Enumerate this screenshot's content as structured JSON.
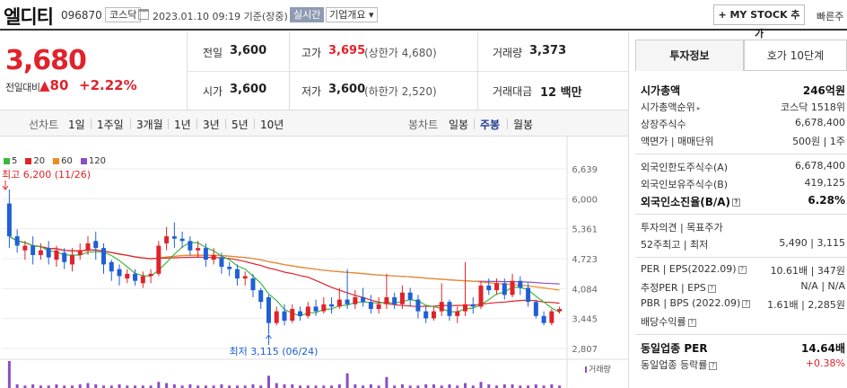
{
  "header": {
    "name": "엘디티",
    "code": "096870",
    "market": "코스닥",
    "datetime": "2023.01.10 09:19 기준(장중)",
    "realtime": "실시간",
    "overview": "기업개요 ▾",
    "mystock": "+ MY STOCK 추가",
    "quick": "빠른주"
  },
  "price": {
    "current": "3,680",
    "change_label": "전일대비",
    "change_value": "▲80",
    "change_pct": "+2.22%"
  },
  "quote": {
    "prev_label": "전일",
    "prev": "3,600",
    "high_label": "고가",
    "high": "3,695",
    "upper": "(상한가 4,680)",
    "volume_label": "거래량",
    "volume": "3,373",
    "open_label": "시가",
    "open": "3,600",
    "low_label": "저가",
    "low": "3,600",
    "lower": "(하한가 2,520)",
    "amount_label": "거래대금",
    "amount": "12 백만"
  },
  "period": {
    "line_head": "선차트",
    "line_items": [
      "1일",
      "1주일",
      "3개월",
      "1년",
      "3년",
      "5년",
      "10년"
    ],
    "candle_head": "봉차트",
    "candle_items": [
      "일봉",
      "주봉",
      "월봉"
    ],
    "active": "주봉"
  },
  "chart_data": {
    "type": "candlestick",
    "interval": "weekly",
    "legend": [
      {
        "name": "5",
        "color": "#3cb93c"
      },
      {
        "name": "20",
        "color": "#e0232b"
      },
      {
        "name": "60",
        "color": "#f08c1e"
      },
      {
        "name": "120",
        "color": "#8a4fc4"
      }
    ],
    "ylim": [
      2807,
      6639
    ],
    "yticks": [
      "6,639",
      "6,000",
      "5,361",
      "4,723",
      "4,084",
      "3,445",
      "2,807"
    ],
    "high_annotation": "최고 6,200 (11/26)",
    "low_annotation": "최저 3,115 (06/24)",
    "volume_label": "거래량",
    "candles": [
      [
        5900,
        5200,
        6200,
        4950
      ],
      [
        5200,
        5000,
        5350,
        4850
      ],
      [
        4900,
        5000,
        5100,
        4700
      ],
      [
        5000,
        4800,
        5200,
        4600
      ],
      [
        4800,
        4900,
        5050,
        4700
      ],
      [
        4950,
        4750,
        5100,
        4600
      ],
      [
        4700,
        4900,
        5000,
        4550
      ],
      [
        4850,
        4650,
        4950,
        4500
      ],
      [
        4600,
        4800,
        4950,
        4450
      ],
      [
        4800,
        4900,
        5050,
        4700
      ],
      [
        4900,
        5050,
        5200,
        4800
      ],
      [
        5100,
        4950,
        5300,
        4700
      ],
      [
        4950,
        4600,
        5050,
        4400
      ],
      [
        4650,
        4450,
        4700,
        4250
      ],
      [
        4500,
        4350,
        4600,
        4150
      ],
      [
        4300,
        4400,
        4500,
        4200
      ],
      [
        4400,
        4250,
        4500,
        4150
      ],
      [
        4200,
        4350,
        4450,
        4100
      ],
      [
        4350,
        4400,
        4500,
        4200
      ],
      [
        4400,
        5000,
        5100,
        4350
      ],
      [
        5050,
        5200,
        5400,
        4900
      ],
      [
        5200,
        5150,
        5500,
        4950
      ],
      [
        5150,
        5100,
        5300,
        4950
      ],
      [
        5100,
        4900,
        5200,
        4800
      ],
      [
        4900,
        4950,
        5100,
        4750
      ],
      [
        4950,
        4700,
        5050,
        4550
      ],
      [
        4700,
        4800,
        4950,
        4600
      ],
      [
        4750,
        4550,
        4850,
        4400
      ],
      [
        4550,
        4500,
        4650,
        4350
      ],
      [
        4500,
        4300,
        4600,
        4150
      ],
      [
        4300,
        4350,
        4450,
        4150
      ],
      [
        4300,
        4050,
        4400,
        3900
      ],
      [
        4050,
        3800,
        4100,
        3650
      ],
      [
        3900,
        3350,
        3950,
        3115
      ],
      [
        3350,
        3600,
        3700,
        3300
      ],
      [
        3600,
        3400,
        3750,
        3300
      ],
      [
        3400,
        3650,
        3750,
        3350
      ],
      [
        3600,
        3500,
        3700,
        3400
      ],
      [
        3500,
        3700,
        3800,
        3450
      ],
      [
        3700,
        3600,
        3850,
        3500
      ],
      [
        3600,
        3750,
        3900,
        3550
      ],
      [
        3750,
        3700,
        3900,
        3550
      ],
      [
        3700,
        3850,
        4100,
        3650
      ],
      [
        3850,
        3750,
        4500,
        3650
      ],
      [
        3750,
        3900,
        4050,
        3650
      ],
      [
        3900,
        3800,
        4100,
        3700
      ],
      [
        3800,
        3650,
        3950,
        3550
      ],
      [
        3650,
        3750,
        3900,
        3550
      ],
      [
        3750,
        3900,
        4400,
        3650
      ],
      [
        3900,
        3750,
        4000,
        3650
      ],
      [
        3750,
        4000,
        4150,
        3650
      ],
      [
        4000,
        3850,
        4100,
        3700
      ],
      [
        3850,
        3600,
        3950,
        3450
      ],
      [
        3600,
        3450,
        3700,
        3350
      ],
      [
        3450,
        3600,
        3700,
        3400
      ],
      [
        3600,
        3800,
        4200,
        3500
      ],
      [
        3800,
        3500,
        3850,
        3400
      ],
      [
        3500,
        3600,
        3700,
        3350
      ],
      [
        3600,
        3750,
        4650,
        3500
      ],
      [
        3750,
        3700,
        3900,
        3550
      ],
      [
        3700,
        4150,
        4250,
        3650
      ],
      [
        4150,
        4050,
        4300,
        3950
      ],
      [
        4050,
        4200,
        4300,
        3950
      ],
      [
        4200,
        3950,
        4300,
        3850
      ],
      [
        3950,
        4250,
        4400,
        3900
      ],
      [
        4250,
        4100,
        4350,
        3950
      ],
      [
        4100,
        3800,
        4200,
        3700
      ],
      [
        3800,
        3500,
        3850,
        3450
      ],
      [
        3500,
        3350,
        3600,
        3300
      ],
      [
        3350,
        3600,
        3650,
        3300
      ],
      [
        3600,
        3650,
        3700,
        3550
      ]
    ],
    "volumes": [
      22,
      3,
      2,
      3,
      2,
      2,
      3,
      2,
      2,
      3,
      4,
      3,
      2,
      2,
      3,
      2,
      2,
      2,
      2,
      5,
      4,
      3,
      2,
      3,
      2,
      2,
      2,
      3,
      2,
      2,
      2,
      3,
      2,
      10,
      4,
      3,
      3,
      2,
      2,
      2,
      2,
      2,
      3,
      12,
      3,
      2,
      3,
      2,
      9,
      2,
      3,
      2,
      2,
      3,
      3,
      2,
      3,
      2,
      4,
      2,
      5,
      3,
      2,
      3,
      3,
      2,
      2,
      3,
      2,
      3,
      2
    ]
  },
  "invest": {
    "tab_active": "투자정보",
    "tab_inactive": "호가 10단계",
    "rows_a": [
      {
        "label": "시가총액",
        "value": "246억원",
        "bold": true
      },
      {
        "label": "시가총액순위",
        "value": "코스닥 1518위",
        "caret": true
      },
      {
        "label": "상장주식수",
        "value": "6,678,400"
      },
      {
        "label": "액면가 | 매매단위",
        "value": "500원 | 1주"
      }
    ],
    "rows_b": [
      {
        "label": "외국인한도주식수(A)",
        "value": "6,678,400"
      },
      {
        "label": "외국인보유주식수(B)",
        "value": "419,125"
      },
      {
        "label": "외국인소진율(B/A)",
        "value": "6.28%",
        "bold": true,
        "help": true
      }
    ],
    "rows_c": [
      {
        "label": "투자의견 | 목표주가",
        "value": ""
      },
      {
        "label": "52주최고 | 최저",
        "value": "5,490 | 3,115"
      }
    ],
    "rows_d": [
      {
        "label": "PER | EPS(2022.09)",
        "value": "10.61배 | 347원",
        "help": true
      },
      {
        "label": "추정PER | EPS",
        "value": "N/A | N/A",
        "help": true
      },
      {
        "label": "PBR | BPS (2022.09)",
        "value": "1.61배 | 2,285원",
        "help": true
      },
      {
        "label": "배당수익률",
        "value": "",
        "help": true
      }
    ],
    "rows_e": [
      {
        "label": "동일업종 PER",
        "value": "14.64배",
        "bold": true
      },
      {
        "label": "동일업종 등락률",
        "value": "+0.38%",
        "red": true,
        "help": true
      }
    ]
  }
}
